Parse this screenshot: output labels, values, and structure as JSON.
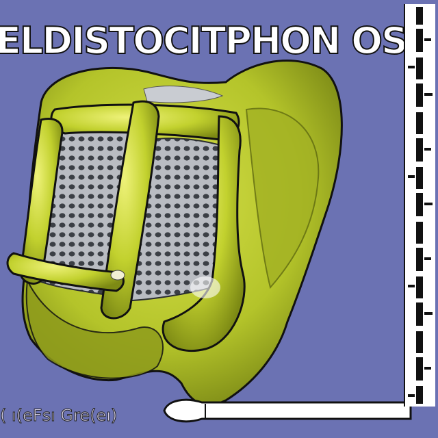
{
  "title": "ELDISTOCITPHON OSR",
  "caption": "( ı(eFsı Gre(eı)",
  "colors": {
    "background": "#6b72b3",
    "lime": "#b4c42a",
    "lime_light": "#d6e04a",
    "lime_dark": "#5f6a10",
    "mesh": "#8e9299",
    "outline": "#111111",
    "ruler": "#ffffff"
  },
  "icons": {
    "specimen": "green-organic-specimen-illustration",
    "ruler": "measurement-ruler",
    "pointer": "white-pointer-shape"
  }
}
